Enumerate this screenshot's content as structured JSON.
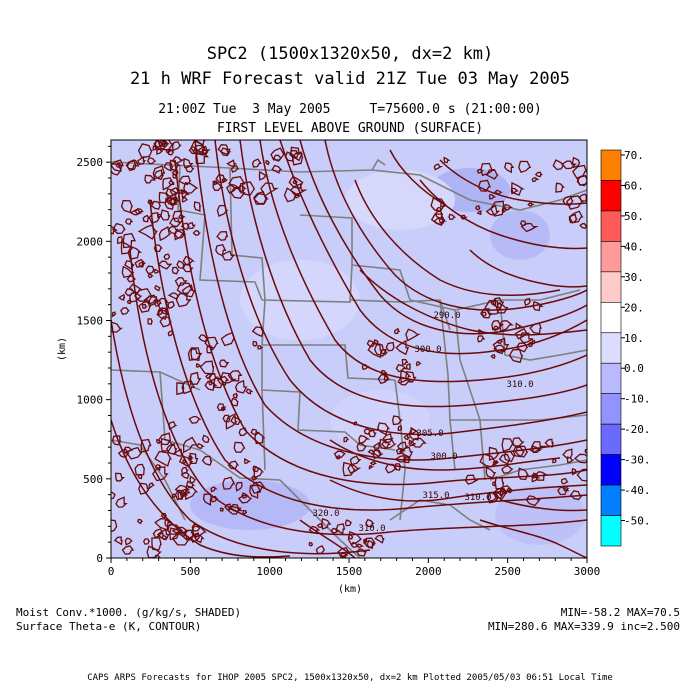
{
  "header": {
    "title_line1": "SPC2 (1500x1320x50, dx=2 km)",
    "title_line2": "21 h WRF Forecast valid 21Z Tue 03 May 2005",
    "time_line": "21:00Z Tue  3 May 2005     T=75600.0 s (21:00:00)",
    "level_line": "FIRST LEVEL ABOVE GROUND (SURFACE)"
  },
  "colors": {
    "background_field": "#c9cdfa",
    "contour": "#6b0a0a",
    "state_lines": "#7f7f7f"
  },
  "chart_data": {
    "type": "heatmap",
    "xlabel": "(km)",
    "ylabel": "(km)",
    "xlim": [
      0,
      3000
    ],
    "ylim": [
      0,
      2640
    ],
    "x_ticks": [
      "0",
      "500",
      "1000",
      "1500",
      "2000",
      "2500",
      "3000"
    ],
    "y_ticks": [
      "0",
      "500",
      "1000",
      "1500",
      "2000",
      "2500"
    ],
    "contour_labels": [
      "290.0",
      "300.0",
      "310.0",
      "305.0",
      "300.0",
      "315.0",
      "320.0",
      "310.0",
      "310.0"
    ],
    "colorbar": {
      "labels": [
        "70.",
        "60.",
        "50.",
        "40.",
        "30.",
        "20.",
        "10.",
        "0.0",
        "-10.",
        "-20.",
        "-30.",
        "-40.",
        "-50."
      ],
      "colors": [
        "#ff8000",
        "#ff0000",
        "#ff5a5a",
        "#ff9a9a",
        "#ffcaca",
        "#ffffff",
        "#dcdcff",
        "#b9b9ff",
        "#9393ff",
        "#6a6aff",
        "#0000ff",
        "#0080ff",
        "#00ffff"
      ]
    }
  },
  "footer": {
    "left_line1": "Moist Conv.*1000. (g/kg/s, SHADED)",
    "left_line2": "Surface Theta-e (K, CONTOUR)",
    "right_line1": "MIN=-58.2 MAX=70.5",
    "right_line2": "MIN=280.6 MAX=339.9 inc=2.500",
    "credit": "CAPS ARPS Forecasts for IHOP 2005  SPC2, 1500x1320x50, dx=2 km  Plotted 2005/05/03 06:51 Local Time"
  }
}
